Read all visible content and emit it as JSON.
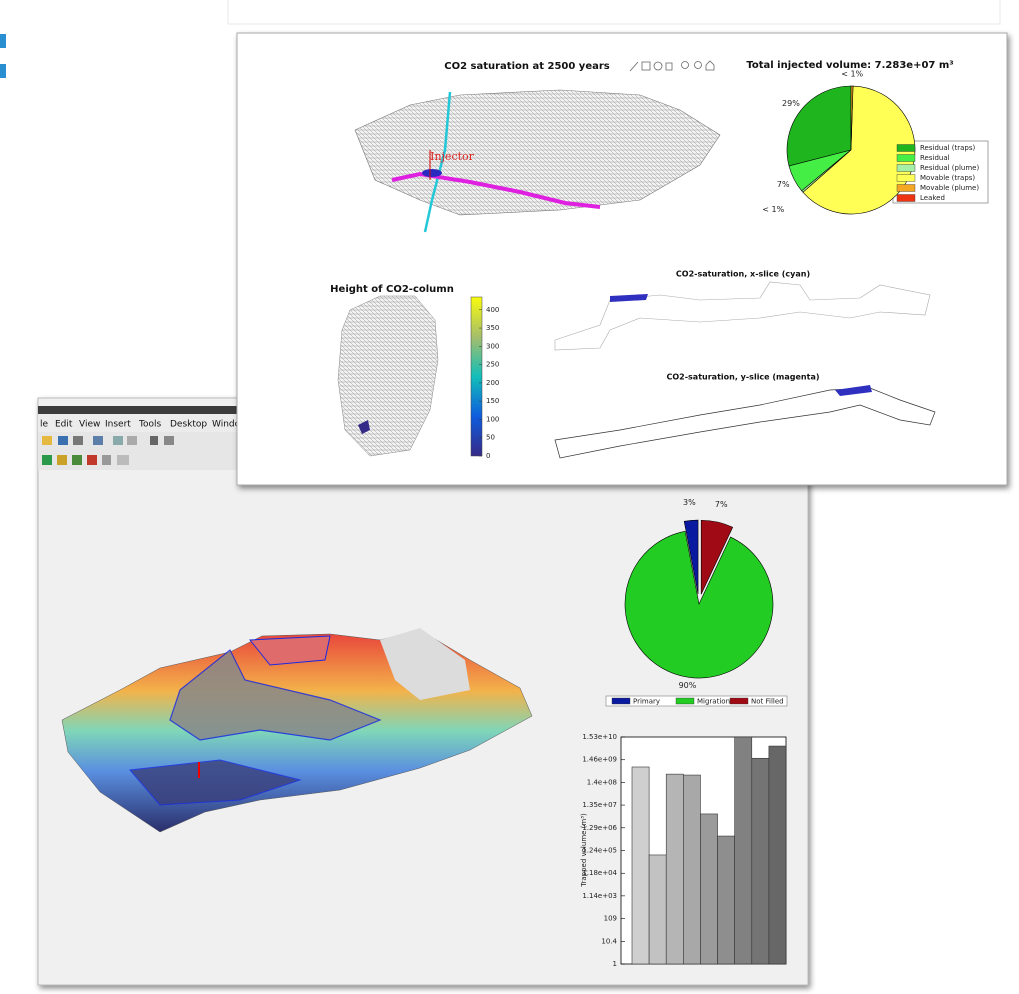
{
  "back_window": {
    "menu": [
      "le",
      "Edit",
      "View",
      "Insert",
      "Tools",
      "Desktop",
      "Windo"
    ],
    "pie_chart": {
      "type": "pie",
      "categories": [
        "Primary",
        "Migration",
        "Not Filled"
      ],
      "values": [
        3,
        90,
        7
      ],
      "value_labels": [
        "3%",
        "90%",
        "7%"
      ],
      "colors": [
        "#0a1aa0",
        "#22cc22",
        "#a00a14"
      ],
      "explode": [
        true,
        false,
        true
      ],
      "direction": "counterclockwise"
    },
    "bar_chart": {
      "type": "bar",
      "values": [
        690000000,
        78000,
        330000000,
        300000000,
        5400000,
        550000,
        15300000000,
        1700000000,
        6000000000
      ],
      "colors": [
        "#cfcfcf",
        "#c2c2c2",
        "#b5b5b5",
        "#a8a8a8",
        "#9b9b9b",
        "#8e8e8e",
        "#818181",
        "#747474",
        "#676767"
      ],
      "ylabel": "Trapped volume (m³)",
      "log_scale": true,
      "ylim": [
        1,
        15300000000
      ],
      "yticks": [
        1,
        10.4,
        109,
        {
          "value": 1140,
          "label": "1.14e+03"
        },
        {
          "value": 11800,
          "label": "1.18e+04"
        },
        {
          "value": 124000,
          "label": "1.24e+05"
        },
        {
          "value": 1290000,
          "label": "1.29e+06"
        },
        {
          "value": 13500000,
          "label": "1.35e+07"
        },
        {
          "value": 140000000,
          "label": "1.4e+08"
        },
        {
          "value": 1460000000,
          "label": "1.46e+09"
        },
        {
          "value": 15300000000,
          "label": "1.53e+10"
        }
      ]
    }
  },
  "front_window": {
    "title": "CO2 saturation at 2500 years",
    "annotation": "Injector",
    "pie_chart": {
      "type": "pie",
      "title": "Total injected volume: 7.283e+07 m³",
      "categories": [
        "Residual (traps)",
        "Residual",
        "Residual (plume)",
        "Movable (traps)",
        "Movable (plume)",
        "Leaked"
      ],
      "values": [
        29,
        7,
        0.5,
        63,
        0.5,
        0
      ],
      "value_labels": [
        "29%",
        "7%",
        "< 1%",
        null,
        "< 1%",
        null
      ],
      "colors": [
        "#1fb51f",
        "#44ee44",
        "#a6efa6",
        "#ffff55",
        "#f5a623",
        "#ee3311"
      ],
      "direction": "counterclockwise"
    },
    "height_map": {
      "title": "Height of CO2-column",
      "colorbar": {
        "ylim": [
          0,
          435
        ],
        "yticks": [
          0,
          50,
          100,
          150,
          200,
          250,
          300,
          350,
          400
        ]
      }
    },
    "x_slice_title": "CO2-saturation, x-slice (cyan)",
    "y_slice_title": "CO2-saturation, y-slice (magenta)"
  }
}
